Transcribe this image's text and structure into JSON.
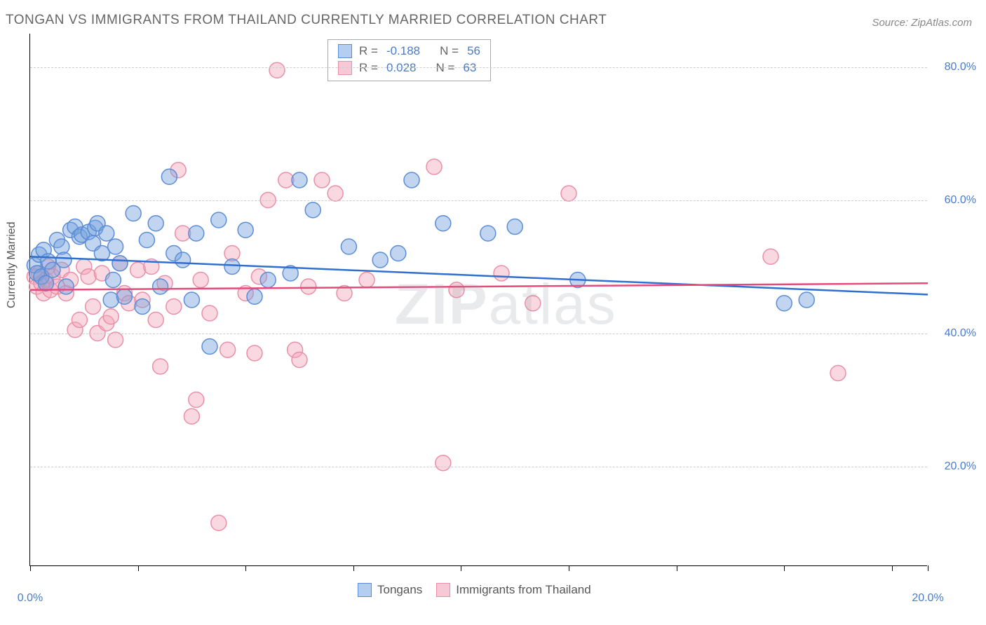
{
  "title": "TONGAN VS IMMIGRANTS FROM THAILAND CURRENTLY MARRIED CORRELATION CHART",
  "source": "Source: ZipAtlas.com",
  "watermark": {
    "bold": "ZIP",
    "rest": "atlas"
  },
  "y_axis_label": "Currently Married",
  "chart": {
    "type": "scatter-with-regression",
    "background_color": "#ffffff",
    "grid_color": "#cccccc",
    "axis_color": "#000000",
    "tick_label_color": "#4a7bc8",
    "tick_fontsize": 16,
    "title_fontsize": 19,
    "xlim": [
      0.0,
      20.0
    ],
    "ylim": [
      5.0,
      85.0
    ],
    "y_ticks": [
      20.0,
      40.0,
      60.0,
      80.0
    ],
    "y_tick_labels": [
      "20.0%",
      "40.0%",
      "60.0%",
      "80.0%"
    ],
    "x_ticks": [
      0.0,
      2.4,
      4.8,
      7.2,
      9.6,
      12.0,
      14.4,
      16.8,
      19.2,
      20.0
    ],
    "x_tick_labels": {
      "0": "0.0%",
      "9": "20.0%"
    },
    "marker_radius": 11,
    "marker_stroke_width": 1.5,
    "line_width": 2.5,
    "series": [
      {
        "name": "Tongans",
        "fill_color": "rgba(118,162,222,0.45)",
        "stroke_color": "#5b8dd6",
        "line_color": "#2e6fd0",
        "R": "-0.188",
        "N": "56",
        "regression": {
          "y_at_x0": 51.5,
          "y_at_x20": 45.8
        },
        "points": [
          [
            0.1,
            50.2
          ],
          [
            0.15,
            49.0
          ],
          [
            0.2,
            51.8
          ],
          [
            0.25,
            48.5
          ],
          [
            0.3,
            52.5
          ],
          [
            0.35,
            47.5
          ],
          [
            0.4,
            50.8
          ],
          [
            0.5,
            49.5
          ],
          [
            0.6,
            54.0
          ],
          [
            0.7,
            53.0
          ],
          [
            0.75,
            51.0
          ],
          [
            0.8,
            47.0
          ],
          [
            0.9,
            55.5
          ],
          [
            1.0,
            56.0
          ],
          [
            1.1,
            54.5
          ],
          [
            1.15,
            54.8
          ],
          [
            1.3,
            55.2
          ],
          [
            1.4,
            53.5
          ],
          [
            1.45,
            55.8
          ],
          [
            1.5,
            56.5
          ],
          [
            1.6,
            52.0
          ],
          [
            1.7,
            55.0
          ],
          [
            1.8,
            45.0
          ],
          [
            1.85,
            48.0
          ],
          [
            1.9,
            53.0
          ],
          [
            2.0,
            50.5
          ],
          [
            2.1,
            45.5
          ],
          [
            2.3,
            58.0
          ],
          [
            2.5,
            44.0
          ],
          [
            2.6,
            54.0
          ],
          [
            2.8,
            56.5
          ],
          [
            2.9,
            47.0
          ],
          [
            3.1,
            63.5
          ],
          [
            3.2,
            52.0
          ],
          [
            3.4,
            51.0
          ],
          [
            3.6,
            45.0
          ],
          [
            3.7,
            55.0
          ],
          [
            4.0,
            38.0
          ],
          [
            4.2,
            57.0
          ],
          [
            4.5,
            50.0
          ],
          [
            4.8,
            55.5
          ],
          [
            5.0,
            45.5
          ],
          [
            5.3,
            48.0
          ],
          [
            5.8,
            49.0
          ],
          [
            6.0,
            63.0
          ],
          [
            6.3,
            58.5
          ],
          [
            7.1,
            53.0
          ],
          [
            7.8,
            51.0
          ],
          [
            8.2,
            52.0
          ],
          [
            8.5,
            63.0
          ],
          [
            9.2,
            56.5
          ],
          [
            10.2,
            55.0
          ],
          [
            10.8,
            56.0
          ],
          [
            12.2,
            48.0
          ],
          [
            16.8,
            44.5
          ],
          [
            17.3,
            45.0
          ]
        ]
      },
      {
        "name": "Immigrants from Thailand",
        "fill_color": "rgba(243,169,189,0.45)",
        "stroke_color": "#e98fa8",
        "line_color": "#e34b7a",
        "R": "0.028",
        "N": "63",
        "regression": {
          "y_at_x0": 46.5,
          "y_at_x20": 47.5
        },
        "points": [
          [
            0.1,
            48.5
          ],
          [
            0.15,
            47.0
          ],
          [
            0.2,
            49.0
          ],
          [
            0.25,
            47.5
          ],
          [
            0.3,
            46.0
          ],
          [
            0.35,
            48.0
          ],
          [
            0.4,
            50.0
          ],
          [
            0.45,
            46.5
          ],
          [
            0.5,
            48.5
          ],
          [
            0.6,
            47.0
          ],
          [
            0.7,
            49.5
          ],
          [
            0.8,
            46.0
          ],
          [
            0.9,
            48.0
          ],
          [
            1.0,
            40.5
          ],
          [
            1.1,
            42.0
          ],
          [
            1.2,
            50.0
          ],
          [
            1.3,
            48.5
          ],
          [
            1.4,
            44.0
          ],
          [
            1.5,
            40.0
          ],
          [
            1.6,
            49.0
          ],
          [
            1.7,
            41.5
          ],
          [
            1.8,
            42.5
          ],
          [
            1.9,
            39.0
          ],
          [
            2.0,
            50.5
          ],
          [
            2.1,
            46.0
          ],
          [
            2.2,
            44.5
          ],
          [
            2.4,
            49.5
          ],
          [
            2.5,
            45.0
          ],
          [
            2.7,
            50.0
          ],
          [
            2.8,
            42.0
          ],
          [
            2.9,
            35.0
          ],
          [
            3.0,
            47.5
          ],
          [
            3.2,
            44.0
          ],
          [
            3.3,
            64.5
          ],
          [
            3.4,
            55.0
          ],
          [
            3.6,
            27.5
          ],
          [
            3.7,
            30.0
          ],
          [
            3.8,
            48.0
          ],
          [
            4.0,
            43.0
          ],
          [
            4.2,
            11.5
          ],
          [
            4.4,
            37.5
          ],
          [
            4.5,
            52.0
          ],
          [
            4.8,
            46.0
          ],
          [
            5.0,
            37.0
          ],
          [
            5.1,
            48.5
          ],
          [
            5.3,
            60.0
          ],
          [
            5.5,
            79.5
          ],
          [
            5.7,
            63.0
          ],
          [
            5.9,
            37.5
          ],
          [
            6.0,
            36.0
          ],
          [
            6.2,
            47.0
          ],
          [
            6.5,
            63.0
          ],
          [
            6.8,
            61.0
          ],
          [
            7.0,
            46.0
          ],
          [
            7.5,
            48.0
          ],
          [
            9.0,
            65.0
          ],
          [
            9.2,
            20.5
          ],
          [
            9.5,
            46.5
          ],
          [
            10.5,
            49.0
          ],
          [
            11.2,
            44.5
          ],
          [
            12.0,
            61.0
          ],
          [
            16.5,
            51.5
          ],
          [
            18.0,
            34.0
          ]
        ]
      }
    ]
  },
  "stats_legend": {
    "rows": [
      {
        "swatch_fill": "#b3cef0",
        "swatch_border": "#5b8dd6",
        "r_label": "R =",
        "r_val": "-0.188",
        "n_label": "N =",
        "n_val": "56"
      },
      {
        "swatch_fill": "#f7c8d5",
        "swatch_border": "#e98fa8",
        "r_label": "R =",
        "r_val": "0.028",
        "n_label": "N =",
        "n_val": "63"
      }
    ]
  },
  "bottom_legend": {
    "entries": [
      {
        "swatch_fill": "#b3cef0",
        "swatch_border": "#5b8dd6",
        "label": "Tongans"
      },
      {
        "swatch_fill": "#f7c8d5",
        "swatch_border": "#e98fa8",
        "label": "Immigrants from Thailand"
      }
    ]
  }
}
